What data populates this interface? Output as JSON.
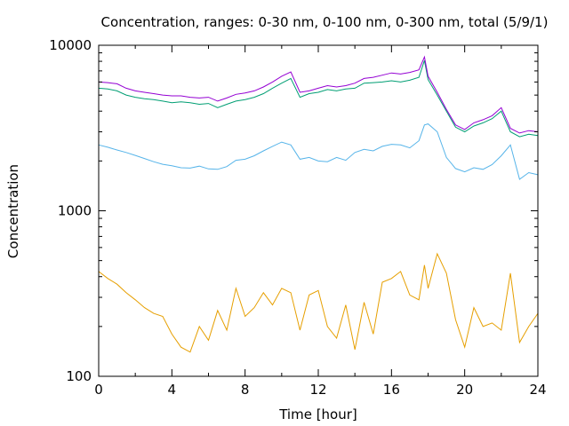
{
  "chart_data": {
    "type": "line",
    "title": "Concentration, ranges: 0-30 nm, 0-100 nm, 0-300 nm, total (5/9/1)",
    "xlabel": "Time [hour]",
    "ylabel": "Concentration",
    "xlim": [
      0,
      24
    ],
    "ylim": [
      100,
      10000
    ],
    "yscale": "log",
    "grid": false,
    "legend": "none",
    "x_ticks": [
      "0",
      "4",
      "8",
      "12",
      "16",
      "20",
      "24"
    ],
    "y_ticks": [
      "100",
      "1000",
      "10000"
    ],
    "x": [
      0,
      0.5,
      1,
      1.5,
      2,
      2.5,
      3,
      3.5,
      4,
      4.5,
      5,
      5.5,
      6,
      6.5,
      7,
      7.5,
      8,
      8.5,
      9,
      9.5,
      10,
      10.5,
      11,
      11.5,
      12,
      12.5,
      13,
      13.5,
      14,
      14.5,
      15,
      15.5,
      16,
      16.5,
      17,
      17.5,
      17.8,
      18,
      18.5,
      19,
      19.5,
      20,
      20.5,
      21,
      21.5,
      22,
      22.5,
      23,
      23.5,
      24
    ],
    "series": [
      {
        "color": "#e69f00",
        "values": [
          430,
          390,
          360,
          320,
          290,
          260,
          240,
          230,
          180,
          150,
          140,
          200,
          165,
          250,
          190,
          340,
          230,
          260,
          320,
          270,
          340,
          320,
          190,
          310,
          330,
          200,
          170,
          270,
          145,
          280,
          180,
          370,
          390,
          430,
          310,
          290,
          470,
          340,
          550,
          420,
          220,
          150,
          260,
          200,
          210,
          190,
          420,
          160,
          200,
          240
        ]
      },
      {
        "color": "#56b4e9",
        "values": [
          2500,
          2420,
          2330,
          2250,
          2160,
          2070,
          1980,
          1910,
          1870,
          1820,
          1810,
          1860,
          1790,
          1780,
          1850,
          2020,
          2050,
          2150,
          2300,
          2450,
          2600,
          2500,
          2050,
          2100,
          2000,
          1980,
          2100,
          2020,
          2250,
          2350,
          2300,
          2450,
          2520,
          2500,
          2400,
          2650,
          3300,
          3350,
          3000,
          2100,
          1800,
          1720,
          1820,
          1780,
          1900,
          2150,
          2500,
          1550,
          1700,
          1650
        ]
      },
      {
        "color": "#009e73",
        "values": [
          5500,
          5450,
          5300,
          5000,
          4850,
          4750,
          4700,
          4600,
          4500,
          4550,
          4500,
          4400,
          4450,
          4200,
          4400,
          4600,
          4700,
          4850,
          5100,
          5500,
          5900,
          6300,
          4850,
          5100,
          5200,
          5400,
          5300,
          5450,
          5500,
          5900,
          5950,
          6000,
          6100,
          6000,
          6150,
          6400,
          8100,
          6200,
          5000,
          4000,
          3200,
          3000,
          3250,
          3400,
          3600,
          4000,
          3000,
          2800,
          2900,
          2850
        ]
      },
      {
        "color": "#9400d3",
        "values": [
          6000,
          5950,
          5850,
          5500,
          5300,
          5200,
          5100,
          5000,
          4950,
          4950,
          4850,
          4800,
          4850,
          4600,
          4800,
          5050,
          5150,
          5300,
          5600,
          6000,
          6500,
          6900,
          5200,
          5300,
          5500,
          5700,
          5600,
          5700,
          5900,
          6300,
          6400,
          6600,
          6800,
          6700,
          6850,
          7100,
          8500,
          6500,
          5200,
          4100,
          3300,
          3100,
          3400,
          3550,
          3750,
          4200,
          3150,
          2950,
          3050,
          3000
        ]
      }
    ]
  }
}
